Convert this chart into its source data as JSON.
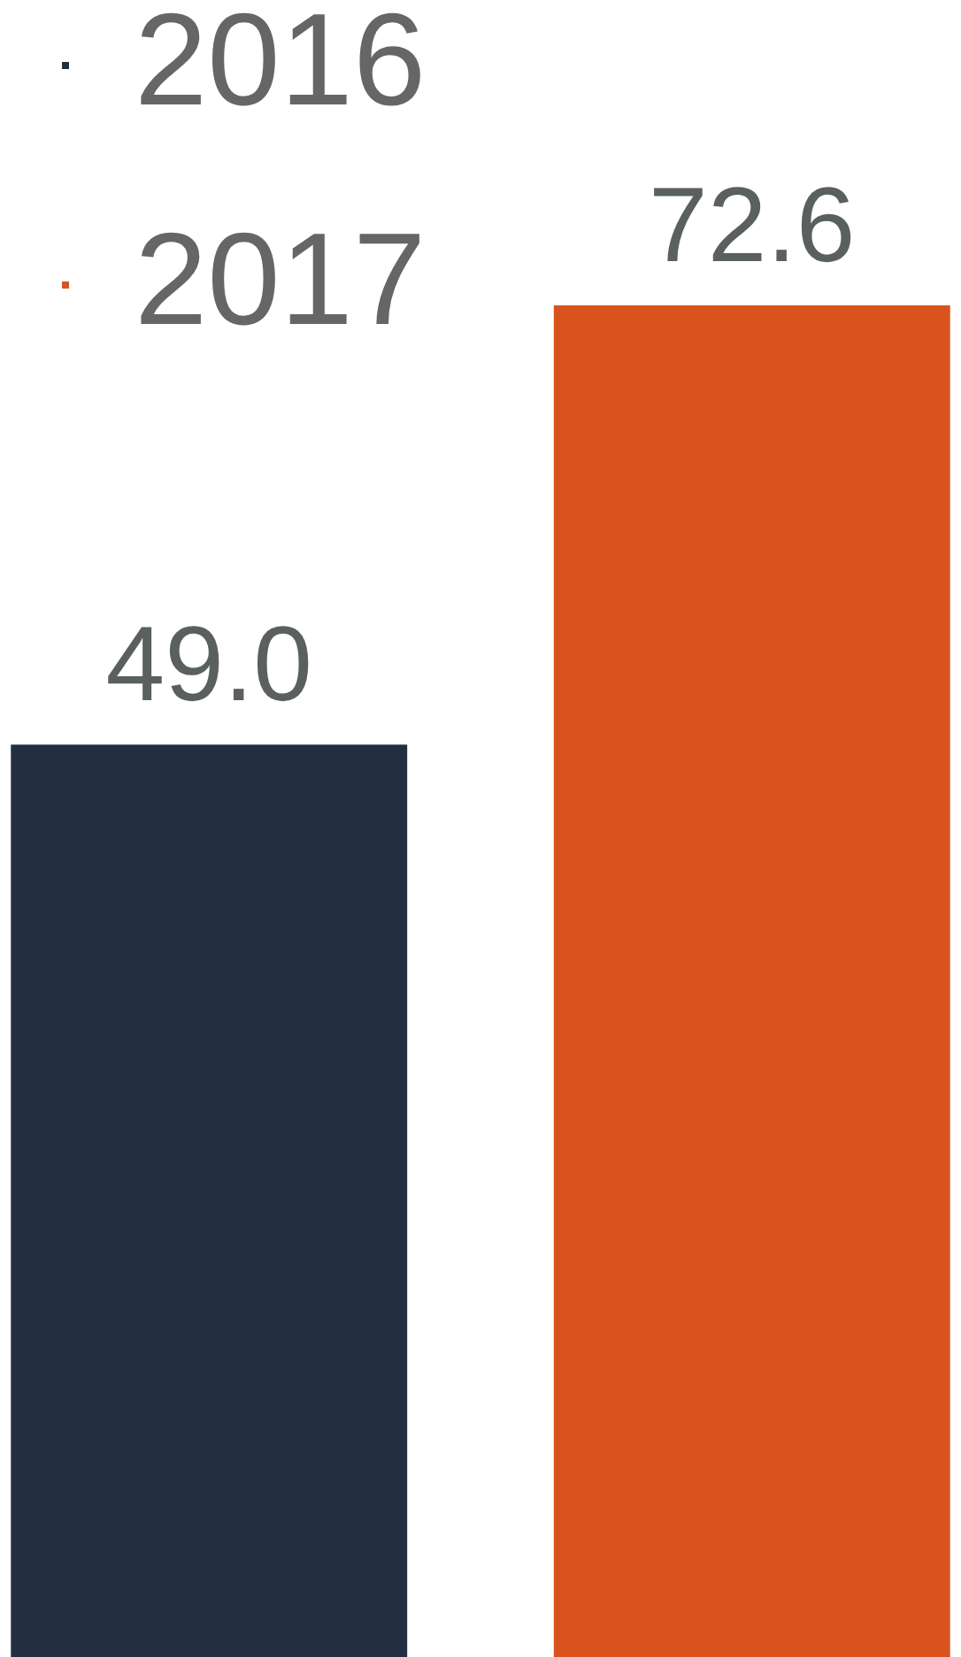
{
  "chart_data": {
    "type": "bar",
    "categories": [
      null
    ],
    "series": [
      {
        "name": "2016",
        "color": "#232f40",
        "values": [
          49.0
        ],
        "value_labels": [
          "49.0"
        ]
      },
      {
        "name": "2017",
        "color": "#d9531f",
        "values": [
          72.6
        ],
        "value_labels": [
          "72.6"
        ]
      }
    ],
    "ylim": [
      0,
      89
    ],
    "legend": "top left"
  }
}
